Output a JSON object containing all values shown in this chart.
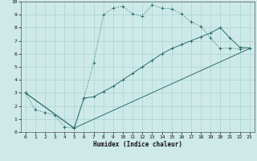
{
  "xlabel": "Humidex (Indice chaleur)",
  "bg_color": "#ceeae8",
  "grid_color": "#aad4d0",
  "line_color": "#2d6e6e",
  "xlim": [
    -0.5,
    23.5
  ],
  "ylim": [
    0,
    10
  ],
  "xticks": [
    0,
    1,
    2,
    3,
    4,
    5,
    6,
    7,
    8,
    9,
    10,
    11,
    12,
    13,
    14,
    15,
    16,
    17,
    18,
    19,
    20,
    21,
    22,
    23
  ],
  "yticks": [
    0,
    1,
    2,
    3,
    4,
    5,
    6,
    7,
    8,
    9,
    10
  ],
  "curve1_x": [
    0,
    1,
    2,
    3,
    4,
    5,
    6,
    7,
    8,
    9,
    10,
    11,
    12,
    13,
    14,
    15,
    16,
    17,
    18,
    19,
    20,
    21,
    22,
    23
  ],
  "curve1_y": [
    3,
    1.7,
    1.5,
    1.3,
    0.4,
    0.3,
    2.6,
    5.3,
    9.0,
    9.5,
    9.65,
    9.05,
    8.9,
    9.75,
    9.5,
    9.45,
    9.05,
    8.45,
    8.1,
    7.2,
    6.4,
    6.45,
    6.35,
    6.45
  ],
  "curve2_x": [
    0,
    5,
    6,
    7,
    8,
    9,
    10,
    11,
    12,
    13,
    14,
    15,
    16,
    17,
    18,
    19,
    20,
    21,
    22,
    23
  ],
  "curve2_y": [
    3,
    0.3,
    2.6,
    2.7,
    3.1,
    3.5,
    4.0,
    4.5,
    5.0,
    5.5,
    6.0,
    6.4,
    6.7,
    7.0,
    7.3,
    7.6,
    8.0,
    7.2,
    6.5,
    6.45
  ],
  "curve3_x": [
    0,
    5,
    23
  ],
  "curve3_y": [
    3,
    0.3,
    6.4
  ]
}
